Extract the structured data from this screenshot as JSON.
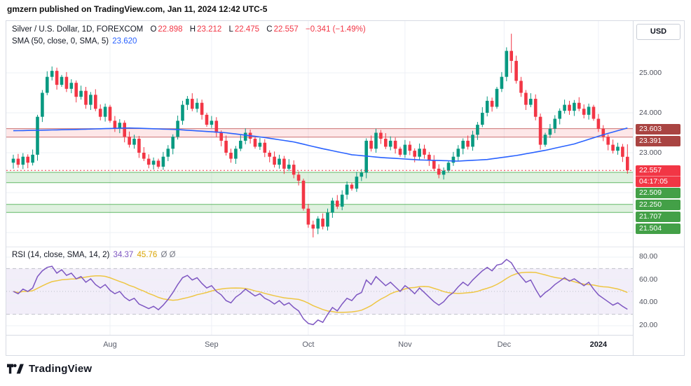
{
  "header": {
    "publisher_note": "gmzern published on TradingView.com, Jan 11, 2024 12:42 UTC-5"
  },
  "toolbar": {
    "currency_label": "USD"
  },
  "legend": {
    "symbol_title": "Silver / U.S. Dollar, 1D, FOREXCOM",
    "ohlc": [
      {
        "label": "O",
        "value": "22.898"
      },
      {
        "label": "H",
        "value": "23.212"
      },
      {
        "label": "L",
        "value": "22.475"
      },
      {
        "label": "C",
        "value": "22.557"
      }
    ],
    "change": "−0.341 (−1.49%)",
    "sma_label": "SMA (50, close, 0, SMA, 5)",
    "sma_value": "23.620",
    "rsi_label": "RSI (14, close, SMA, 14, 2)",
    "rsi_value": "34.37",
    "rsi_ma_value": "45.76",
    "rsi_extra": "Ø Ø"
  },
  "footer": {
    "brand": "TradingView"
  },
  "colors": {
    "up": "#089981",
    "down": "#f23645",
    "sma_line": "#2962ff",
    "rsi_line": "#7e57c2",
    "rsi_ma_line": "#eec643",
    "zone_red_fill": "rgba(242,54,69,0.12)",
    "zone_red_line": "#c45c5c",
    "zone_green_fill": "rgba(76,175,80,0.18)",
    "zone_green_line": "#4caf50",
    "rsi_band_fill": "rgba(126,87,194,0.10)",
    "grid": "#eef0f6",
    "band_edge": "#b2b5be"
  },
  "price_axis": {
    "gridline_labels": [
      {
        "text": "25.000",
        "price": 25.0
      },
      {
        "text": "24.000",
        "price": 24.0
      },
      {
        "text": "23.000",
        "price": 23.0
      }
    ],
    "level_badges": [
      {
        "text": "23.603",
        "price": 23.603,
        "bg": "#a94442"
      },
      {
        "text": "23.391",
        "price": 23.391,
        "bg": "#a94442"
      },
      {
        "text": "22.557",
        "price": 22.557,
        "bg": "#f23645",
        "countdown": "04:17:05"
      },
      {
        "text": "22.509",
        "price": 22.509,
        "bg": "#43a047"
      },
      {
        "text": "22.250",
        "price": 22.25,
        "bg": "#43a047"
      },
      {
        "text": "21.707",
        "price": 21.707,
        "bg": "#43a047"
      },
      {
        "text": "21.504",
        "price": 21.504,
        "bg": "#43a047"
      }
    ]
  },
  "rsi_axis": {
    "labels": [
      {
        "text": "80.00",
        "value": 80
      },
      {
        "text": "60.00",
        "value": 60
      },
      {
        "text": "40.00",
        "value": 40
      },
      {
        "text": "20.00",
        "value": 20
      }
    ]
  },
  "time_axis": {
    "months": [
      {
        "label": "Aug",
        "index": 20
      },
      {
        "label": "Sep",
        "index": 41
      },
      {
        "label": "Oct",
        "index": 61
      },
      {
        "label": "Nov",
        "index": 81
      },
      {
        "label": "Dec",
        "index": 101.5
      },
      {
        "label": "2024",
        "index": 121
      }
    ]
  },
  "chart_data": [
    {
      "type": "candlestick",
      "title": "Silver / U.S. Dollar, 1D, FOREXCOM",
      "ylabel": "USD",
      "ylim": [
        20.8,
        26.3
      ],
      "x_months": [
        "Aug",
        "Sep",
        "Oct",
        "Nov",
        "Dec",
        "2024"
      ],
      "grid_prices": [
        25,
        24,
        23,
        22,
        21
      ],
      "closes": [
        22.85,
        22.7,
        22.9,
        22.75,
        22.95,
        23.9,
        24.5,
        24.9,
        25.05,
        24.7,
        24.9,
        24.6,
        24.75,
        24.4,
        24.55,
        24.2,
        24.45,
        24.1,
        23.9,
        24.15,
        23.8,
        23.6,
        23.75,
        23.4,
        23.2,
        23.35,
        23.0,
        22.85,
        22.7,
        22.8,
        22.65,
        22.9,
        23.1,
        23.4,
        23.8,
        24.2,
        24.35,
        24.1,
        24.25,
        23.95,
        23.7,
        23.8,
        23.5,
        23.3,
        23.0,
        22.85,
        23.1,
        23.3,
        23.5,
        23.35,
        23.15,
        23.25,
        23.0,
        22.9,
        22.7,
        22.85,
        22.6,
        22.7,
        22.45,
        22.3,
        21.6,
        21.2,
        21.1,
        21.35,
        21.15,
        21.5,
        21.8,
        21.65,
        21.95,
        22.2,
        22.1,
        22.4,
        22.5,
        23.3,
        23.1,
        23.5,
        23.35,
        23.15,
        23.3,
        23.1,
        22.95,
        23.2,
        23.05,
        22.9,
        23.1,
        22.95,
        22.8,
        22.6,
        22.45,
        22.55,
        22.75,
        22.9,
        23.1,
        23.3,
        23.15,
        23.45,
        23.7,
        24.0,
        24.3,
        24.15,
        24.6,
        24.9,
        25.55,
        25.3,
        24.8,
        24.5,
        24.2,
        24.35,
        23.9,
        23.2,
        23.45,
        23.6,
        23.85,
        24.05,
        24.2,
        24.05,
        24.25,
        24.1,
        23.95,
        24.15,
        23.85,
        23.6,
        23.4,
        23.2,
        23.05,
        23.15,
        22.898,
        22.557
      ],
      "wick_overrides": {
        "0": [
          22.95,
          22.6
        ],
        "5": [
          23.95,
          22.8
        ],
        "62": [
          21.3,
          20.88
        ],
        "103": [
          25.98,
          25.0
        ],
        "127": [
          23.212,
          22.475
        ]
      },
      "last_candle": {
        "open": 22.898,
        "high": 23.212,
        "low": 22.475,
        "close": 22.557
      },
      "sma50": {
        "label": "SMA (50, close, 0, SMA, 5)",
        "last_value": 23.62,
        "points": [
          [
            0,
            23.55
          ],
          [
            12,
            23.58
          ],
          [
            24,
            23.62
          ],
          [
            34,
            23.58
          ],
          [
            44,
            23.5
          ],
          [
            52,
            23.38
          ],
          [
            58,
            23.27
          ],
          [
            64,
            23.1
          ],
          [
            70,
            22.95
          ],
          [
            76,
            22.88
          ],
          [
            84,
            22.82
          ],
          [
            92,
            22.79
          ],
          [
            98,
            22.83
          ],
          [
            104,
            22.93
          ],
          [
            110,
            23.06
          ],
          [
            116,
            23.22
          ],
          [
            122,
            23.45
          ],
          [
            127,
            23.62
          ]
        ]
      },
      "levels": {
        "resistance_zone": [
          23.391,
          23.603
        ],
        "support_zones": [
          [
            22.25,
            22.509
          ],
          [
            21.504,
            21.707
          ]
        ],
        "last_price": 22.557
      }
    },
    {
      "type": "line",
      "title": "RSI (14, close, SMA, 14, 2)",
      "ylim": [
        20,
        80
      ],
      "band": [
        30,
        70
      ],
      "last_value": 34.37,
      "ma_last_value": 45.76,
      "values": [
        50,
        48,
        52,
        50,
        53,
        63,
        68,
        71,
        72,
        66,
        69,
        64,
        66,
        61,
        63,
        58,
        61,
        56,
        53,
        56,
        51,
        48,
        50,
        45,
        42,
        44,
        39,
        37,
        35,
        37,
        34,
        38,
        43,
        49,
        56,
        62,
        64,
        60,
        62,
        57,
        53,
        55,
        50,
        47,
        42,
        40,
        45,
        48,
        52,
        49,
        46,
        48,
        44,
        42,
        39,
        42,
        38,
        40,
        36,
        33,
        26,
        22,
        21,
        25,
        23,
        30,
        36,
        33,
        39,
        44,
        42,
        47,
        49,
        60,
        56,
        63,
        59,
        55,
        58,
        54,
        50,
        55,
        52,
        48,
        53,
        49,
        45,
        41,
        38,
        41,
        46,
        49,
        54,
        58,
        55,
        60,
        64,
        68,
        71,
        68,
        73,
        74,
        78,
        75,
        68,
        63,
        58,
        60,
        52,
        45,
        49,
        52,
        56,
        59,
        62,
        59,
        61,
        58,
        55,
        58,
        52,
        47,
        44,
        41,
        38,
        40,
        37,
        34.37
      ]
    }
  ]
}
